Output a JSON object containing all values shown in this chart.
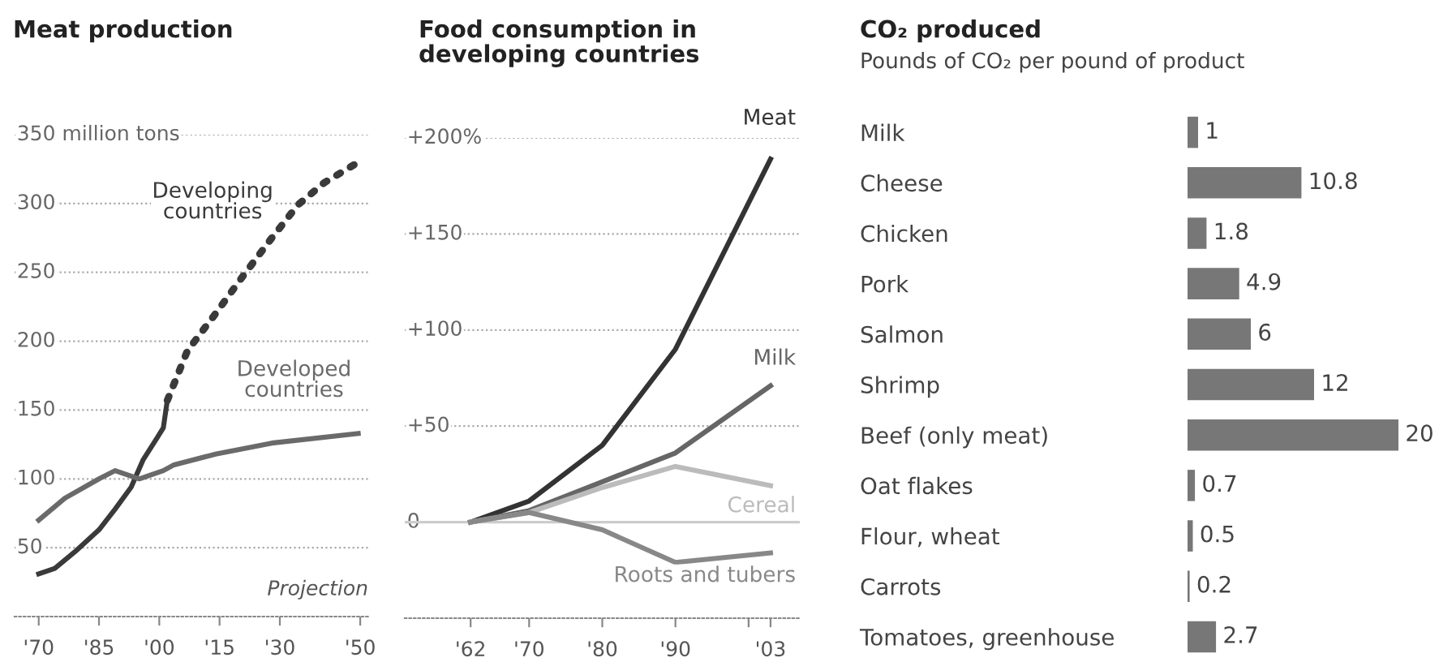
{
  "chart_data": [
    {
      "type": "line",
      "title": "Meat production",
      "xlim": [
        1964,
        2052
      ],
      "ylim": [
        0,
        350
      ],
      "xticks": [
        {
          "value": 1970,
          "label": "'70"
        },
        {
          "value": 1985,
          "label": "'85"
        },
        {
          "value": 2000,
          "label": "'00"
        },
        {
          "value": 2015,
          "label": "'15"
        },
        {
          "value": 2030,
          "label": "'30"
        },
        {
          "value": 2050,
          "label": "'50"
        }
      ],
      "yticks": [
        50,
        100,
        150,
        200,
        250,
        300,
        {
          "value": 350,
          "label": "350 million tons"
        }
      ],
      "grid": "y",
      "annotations": [
        "Projection"
      ],
      "series": [
        {
          "name": "Developing countries",
          "color": "#3a3a3a",
          "line_style": "solid",
          "x": [
            1970,
            1974,
            1979,
            1985,
            1989,
            1993,
            1996,
            1999.5,
            2001,
            2002
          ],
          "values": [
            31,
            35,
            47,
            63,
            78,
            94,
            114,
            130,
            137,
            157
          ]
        },
        {
          "color": "#3a3a3a",
          "line_style": "dotted",
          "x": [
            2002,
            2007,
            2014,
            2021,
            2028,
            2034.5,
            2041,
            2049.5
          ],
          "values": [
            157,
            193,
            220,
            248,
            275,
            299,
            315,
            330
          ]
        },
        {
          "name": "Developed countries",
          "color": "#6a6a6a",
          "line_style": "solid",
          "x": [
            1970,
            1976.5,
            1985,
            1989,
            1993,
            1995,
            2001,
            2003.5,
            2014,
            2028,
            2049.5
          ],
          "values": [
            70,
            86,
            100,
            106,
            102,
            100,
            106,
            110,
            118,
            126,
            133
          ]
        }
      ]
    },
    {
      "type": "line",
      "title": "Food consumption in\ndeveloping countries",
      "xlim": [
        1953,
        2007
      ],
      "ylim": [
        -50,
        200
      ],
      "xticks": [
        {
          "value": 1962,
          "label": "'62"
        },
        {
          "value": 1970,
          "label": "'70"
        },
        {
          "value": 1980,
          "label": "'80"
        },
        {
          "value": 1990,
          "label": "'90"
        },
        {
          "value": 2000,
          "label": null
        },
        {
          "value": 2003,
          "label": "'03"
        }
      ],
      "yticks": [
        0,
        {
          "value": 50,
          "label": "+50"
        },
        {
          "value": 100,
          "label": "+100"
        },
        {
          "value": 150,
          "label": "+150"
        },
        {
          "value": 200,
          "label": "+200%"
        }
      ],
      "grid": "y",
      "ref_lines": [
        {
          "axis": "y",
          "value": 0,
          "color": "#cccccc"
        }
      ],
      "x": [
        1962,
        1970,
        1980,
        1990,
        2003
      ],
      "series": [
        {
          "name": "Meat",
          "color": "#333333",
          "values": [
            0,
            11,
            40,
            90,
            189
          ]
        },
        {
          "name": "Milk",
          "color": "#666666",
          "values": [
            0,
            6,
            21,
            36,
            71
          ]
        },
        {
          "name": "Cereal",
          "color": "#bbbbbb",
          "values": [
            0,
            5,
            18,
            29,
            19
          ]
        },
        {
          "name": "Roots and tubers",
          "color": "#888888",
          "values": [
            0,
            5,
            -4,
            -21,
            -16
          ]
        }
      ]
    },
    {
      "type": "bar",
      "orientation": "horizontal",
      "title": "CO₂ produced",
      "subtitle": "Pounds of CO₂ per pound of product",
      "categories": [
        "Milk",
        "Cheese",
        "Chicken",
        "Pork",
        "Salmon",
        "Shrimp",
        "Beef (only meat)",
        "Oat flakes",
        "Flour, wheat",
        "Carrots",
        "Tomatoes, greenhouse"
      ],
      "values": [
        1,
        10.8,
        1.8,
        4.9,
        6,
        12,
        20,
        0.7,
        0.5,
        0.2,
        2.7
      ],
      "color": "#777777",
      "xlim": [
        0,
        20
      ],
      "data_labels": true,
      "tick_labels": "y"
    }
  ]
}
